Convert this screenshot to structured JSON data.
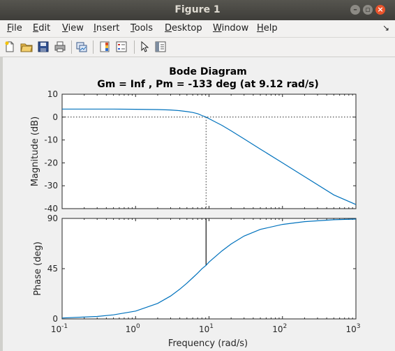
{
  "window": {
    "title": "Figure 1"
  },
  "menu": {
    "items": [
      {
        "key": "F",
        "rest": "ile"
      },
      {
        "key": "E",
        "rest": "dit"
      },
      {
        "key": "V",
        "rest": "iew"
      },
      {
        "key": "I",
        "rest": "nsert"
      },
      {
        "key": "T",
        "rest": "ools"
      },
      {
        "key": "D",
        "rest": "esktop"
      },
      {
        "key": "W",
        "rest": "indow"
      },
      {
        "key": "H",
        "rest": "elp"
      }
    ]
  },
  "toolbar": {
    "icons": [
      "new-figure-icon",
      "open-file-icon",
      "save-icon",
      "print-icon",
      "link-plot-icon",
      "colorbar-icon",
      "legend-icon",
      "pointer-icon",
      "property-editor-icon"
    ]
  },
  "chart_data": {
    "type": "line",
    "title": "Bode Diagram",
    "subtitle": "Gm = Inf ,  Pm = -133 deg (at 9.12 rad/s)",
    "xlabel": "Frequency  (rad/s)",
    "xscale": "log",
    "xlim": [
      0.1,
      1000
    ],
    "x_ticks": [
      0.1,
      1,
      10,
      100,
      1000
    ],
    "x_tick_labels": [
      {
        "base": "10",
        "exp": "-1"
      },
      {
        "base": "10",
        "exp": "0"
      },
      {
        "base": "10",
        "exp": "1"
      },
      {
        "base": "10",
        "exp": "2"
      },
      {
        "base": "10",
        "exp": "3"
      }
    ],
    "grid": false,
    "line_color": "#0072bd",
    "magnitude": {
      "ylabel": "Magnitude (dB)",
      "ylim": [
        -40,
        10
      ],
      "yticks": [
        "10",
        "0",
        "-10",
        "-20",
        "-30",
        "-40"
      ],
      "x": [
        0.1,
        0.5,
        1,
        2,
        3,
        4,
        5,
        6,
        7,
        8,
        9.12,
        12,
        15,
        20,
        30,
        50,
        100,
        200,
        500,
        1000
      ],
      "y": [
        3.5,
        3.5,
        3.4,
        3.3,
        3.1,
        2.8,
        2.4,
        2.0,
        1.5,
        0.7,
        0.0,
        -2.0,
        -3.6,
        -6.0,
        -9.5,
        -14.0,
        -20.0,
        -26.0,
        -34.0,
        -38.2
      ]
    },
    "phase": {
      "ylabel": "Phase (deg)",
      "ylim": [
        0,
        90
      ],
      "yticks": [
        "90",
        "45",
        "0"
      ],
      "x": [
        0.1,
        0.3,
        0.5,
        1,
        2,
        3,
        4,
        5,
        6,
        7,
        8,
        9.12,
        10,
        15,
        20,
        30,
        50,
        100,
        200,
        500,
        1000
      ],
      "y": [
        0.8,
        2.2,
        3.6,
        7.0,
        13.9,
        20.5,
        26.6,
        32.0,
        36.9,
        41.0,
        44.9,
        48.0,
        50.9,
        60.9,
        67.1,
        74.2,
        80.2,
        84.6,
        87.1,
        88.8,
        89.4
      ]
    },
    "crossover_frequency": 9.12,
    "phase_margin_marker": {
      "x": 9.12,
      "from": 48,
      "to": 90
    }
  }
}
